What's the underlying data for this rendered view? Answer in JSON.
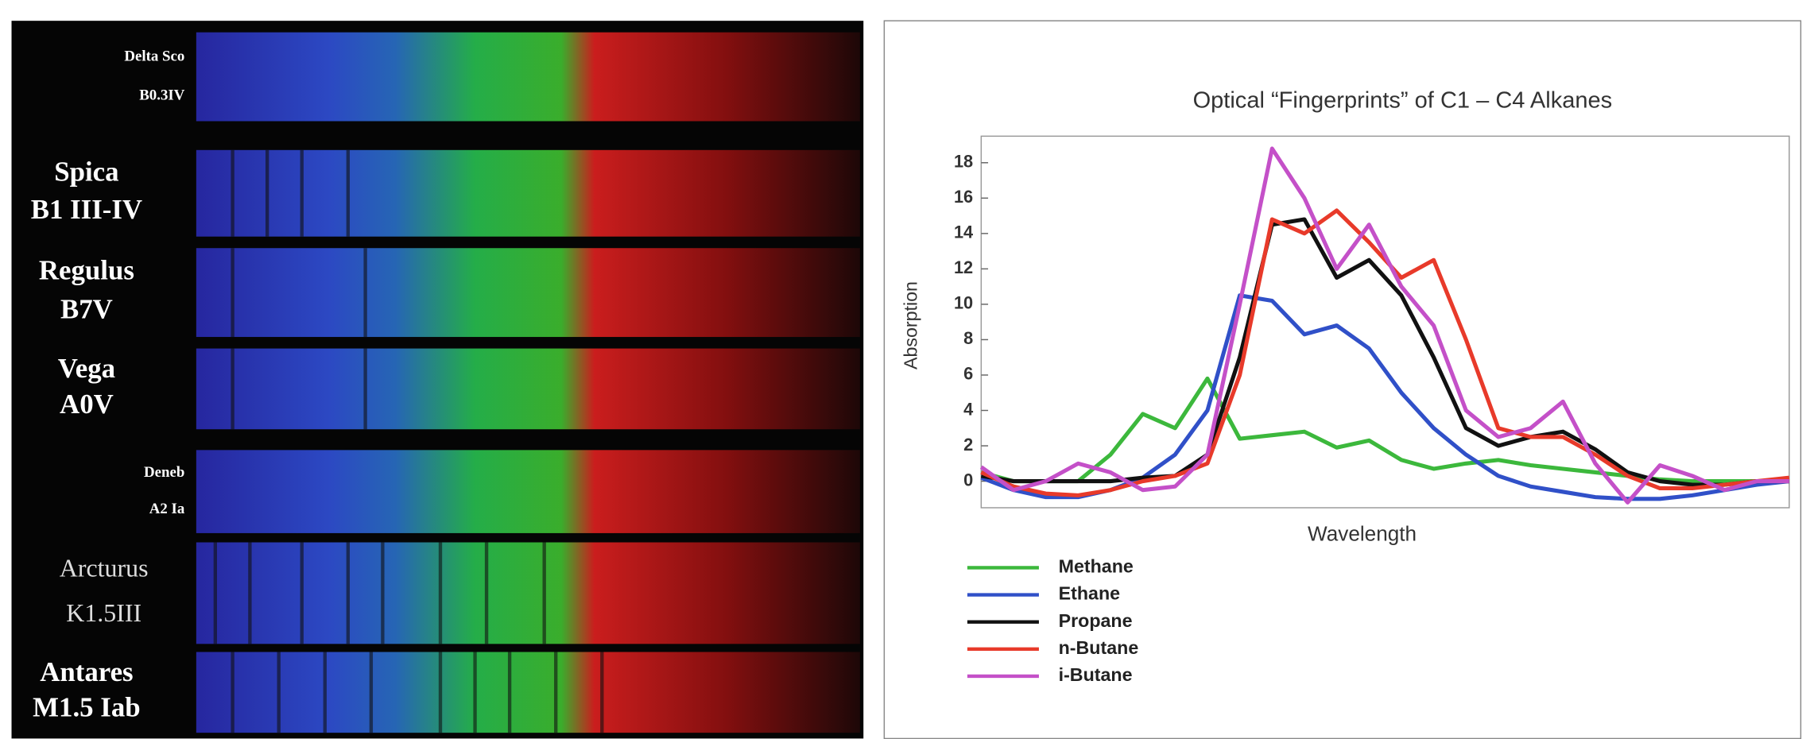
{
  "spectra": [
    {
      "name": "Delta Sco",
      "class": "B0.3IV"
    },
    {
      "name": "Spica",
      "class": "B1 III-IV"
    },
    {
      "name": "Regulus",
      "class": "B7V"
    },
    {
      "name": "Vega",
      "class": "A0V"
    },
    {
      "name": "Deneb",
      "class": "A2 Ia"
    },
    {
      "name": "Arcturus",
      "class": "K1.5III"
    },
    {
      "name": "Antares",
      "class": "M1.5 Iab"
    }
  ],
  "chart_data": {
    "type": "line",
    "title": "Optical “Fingerprints” of C1 – C4 Alkanes",
    "xlabel": "Wavelength",
    "ylabel": "Absorption",
    "x": [
      0,
      4,
      8,
      12,
      16,
      20,
      24,
      28,
      32,
      36,
      40,
      44,
      48,
      52,
      56,
      60,
      64,
      68,
      72,
      76,
      80,
      84,
      88,
      92,
      96,
      100
    ],
    "xlim": [
      0,
      100
    ],
    "ylim": [
      -1.5,
      19.5
    ],
    "yticks": [
      0,
      2,
      4,
      6,
      8,
      10,
      12,
      14,
      16,
      18
    ],
    "series": [
      {
        "name": "Methane",
        "color": "#3cb83c",
        "values": [
          0.5,
          0,
          0,
          0,
          1.5,
          3.8,
          3.0,
          5.8,
          2.4,
          2.6,
          2.8,
          1.9,
          2.3,
          1.2,
          0.7,
          1.0,
          1.2,
          0.9,
          0.7,
          0.5,
          0.3,
          0.1,
          0,
          0,
          0,
          0
        ]
      },
      {
        "name": "Ethane",
        "color": "#3050c8",
        "values": [
          0.2,
          -0.5,
          -0.9,
          -0.9,
          -0.5,
          0.2,
          1.5,
          4,
          10.5,
          10.2,
          8.3,
          8.8,
          7.5,
          5,
          3,
          1.5,
          0.3,
          -0.3,
          -0.6,
          -0.9,
          -1,
          -1,
          -0.8,
          -0.5,
          -0.2,
          0
        ]
      },
      {
        "name": "Propane",
        "color": "#111111",
        "values": [
          0.3,
          0,
          0,
          0,
          0,
          0.2,
          0.3,
          1.5,
          7,
          14.5,
          14.8,
          11.5,
          12.5,
          10.5,
          7,
          3,
          2,
          2.5,
          2.8,
          1.8,
          0.5,
          0,
          -0.2,
          -0.2,
          0,
          0
        ]
      },
      {
        "name": "n-Butane",
        "color": "#e83a2a",
        "values": [
          0.5,
          -0.3,
          -0.7,
          -0.8,
          -0.5,
          0,
          0.3,
          1,
          6,
          14.8,
          14,
          15.3,
          13.5,
          11.5,
          12.5,
          8,
          3,
          2.5,
          2.5,
          1.5,
          0.3,
          -0.4,
          -0.4,
          -0.2,
          0,
          0.2
        ]
      },
      {
        "name": "i-Butane",
        "color": "#c450c8",
        "values": [
          0.8,
          -0.5,
          0,
          1,
          0.5,
          -0.5,
          -0.3,
          1.5,
          10,
          18.8,
          16,
          12,
          14.5,
          11,
          8.8,
          4,
          2.5,
          3,
          4.5,
          1,
          -1.2,
          0.9,
          0.3,
          -0.5,
          0,
          0
        ]
      }
    ]
  }
}
